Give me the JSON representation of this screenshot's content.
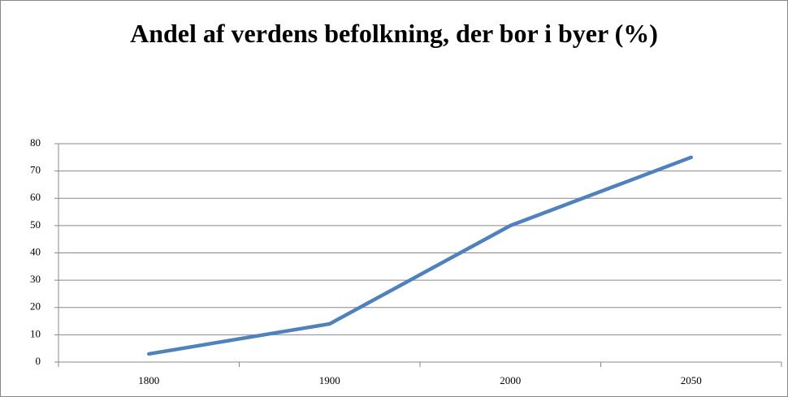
{
  "chart_data": {
    "type": "line",
    "title": "Andel af verdens befolkning, der bor i byer (%)",
    "categories": [
      "1800",
      "1900",
      "2000",
      "2050"
    ],
    "series": [
      {
        "name": "Andel",
        "color": "#4f81bd",
        "values": [
          3,
          14,
          50,
          75
        ]
      }
    ],
    "ylim": [
      0,
      80
    ],
    "yticks": [
      0,
      10,
      20,
      30,
      40,
      50,
      60,
      70,
      80
    ],
    "grid": true
  }
}
